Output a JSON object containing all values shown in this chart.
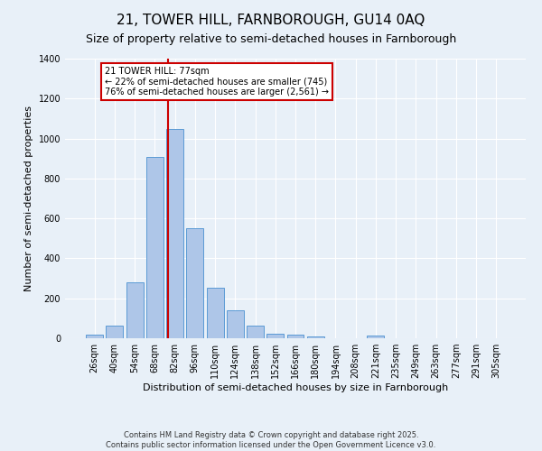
{
  "title": "21, TOWER HILL, FARNBOROUGH, GU14 0AQ",
  "subtitle": "Size of property relative to semi-detached houses in Farnborough",
  "xlabel": "Distribution of semi-detached houses by size in Farnborough",
  "ylabel": "Number of semi-detached properties",
  "footnote1": "Contains HM Land Registry data © Crown copyright and database right 2025.",
  "footnote2": "Contains public sector information licensed under the Open Government Licence v3.0.",
  "bar_labels": [
    "26sqm",
    "40sqm",
    "54sqm",
    "68sqm",
    "82sqm",
    "96sqm",
    "110sqm",
    "124sqm",
    "138sqm",
    "152sqm",
    "166sqm",
    "180sqm",
    "194sqm",
    "208sqm",
    "221sqm",
    "235sqm",
    "249sqm",
    "263sqm",
    "277sqm",
    "291sqm",
    "305sqm"
  ],
  "bar_values": [
    20,
    65,
    280,
    910,
    1047,
    550,
    255,
    140,
    65,
    22,
    18,
    8,
    0,
    0,
    15,
    0,
    0,
    0,
    0,
    0,
    0
  ],
  "bar_color": "#aec6e8",
  "bar_edge_color": "#5b9bd5",
  "ylim": [
    0,
    1400
  ],
  "yticks": [
    0,
    200,
    400,
    600,
    800,
    1000,
    1200,
    1400
  ],
  "property_label": "21 TOWER HILL: 77sqm",
  "annotation_line1": "← 22% of semi-detached houses are smaller (745)",
  "annotation_line2": "76% of semi-detached houses are larger (2,561) →",
  "annotation_box_color": "#cc0000",
  "vline_color": "#cc0000",
  "bg_color": "#e8f0f8",
  "grid_color": "#ffffff",
  "title_fontsize": 11,
  "subtitle_fontsize": 9,
  "axis_label_fontsize": 8,
  "tick_fontsize": 7,
  "footnote_fontsize": 6
}
